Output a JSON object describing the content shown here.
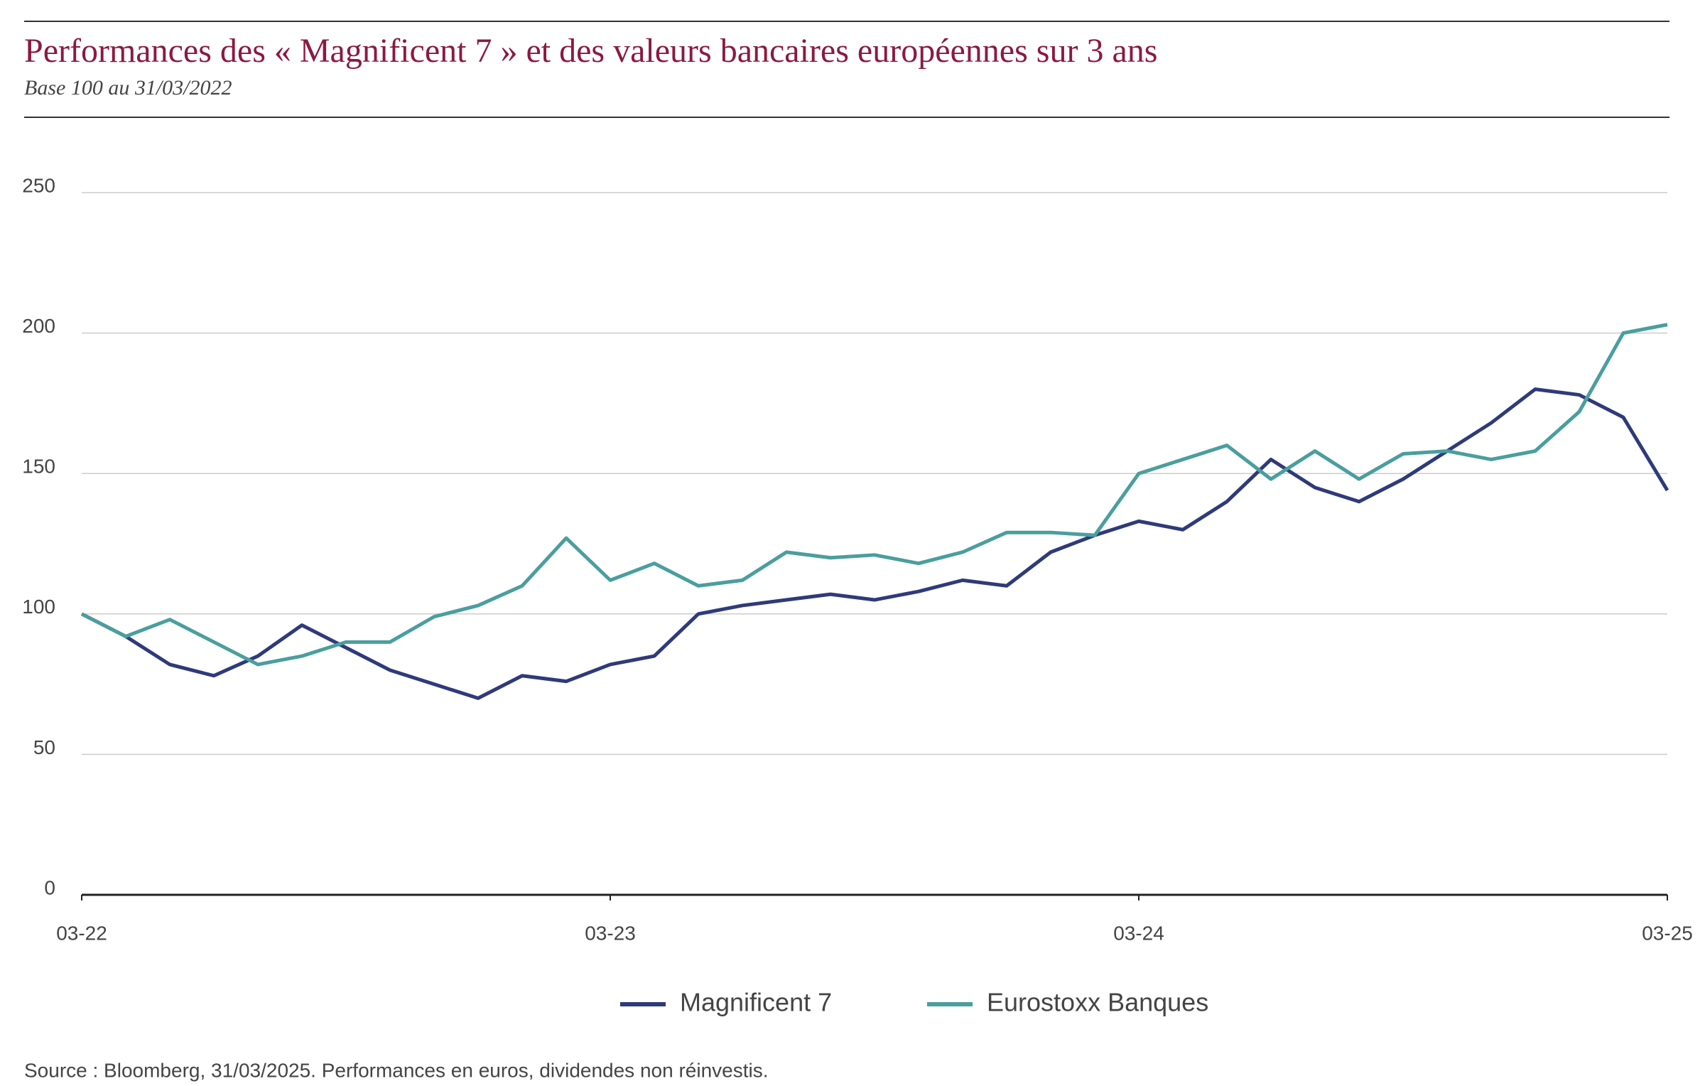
{
  "chart_data": {
    "type": "line",
    "title": "Performances des « Magnificent 7 » et des valeurs bancaires européennes sur 3 ans",
    "subtitle": "Base 100 au 31/03/2022",
    "source": "Source : Bloomberg, 31/03/2025. Performances en euros, dividendes non réinvestis.",
    "x": [
      0,
      1,
      2,
      3,
      4,
      5,
      6,
      7,
      8,
      9,
      10,
      11,
      12,
      13,
      14,
      15,
      16,
      17,
      18,
      19,
      20,
      21,
      22,
      23,
      24,
      25,
      26,
      27,
      28,
      29,
      30,
      31,
      32,
      33,
      34,
      35,
      36
    ],
    "xlim": [
      0,
      36
    ],
    "xticks": [
      {
        "value": 0,
        "label": "03-22"
      },
      {
        "value": 12,
        "label": "03-23"
      },
      {
        "value": 24,
        "label": "03-24"
      },
      {
        "value": 36,
        "label": "03-25"
      }
    ],
    "ylim": [
      0,
      250
    ],
    "yticks": [
      0,
      50,
      100,
      150,
      200,
      250
    ],
    "grid": true,
    "series": [
      {
        "name": "Magnificent 7",
        "color": "#2e3a7a",
        "values": [
          100,
          92,
          82,
          78,
          85,
          96,
          88,
          80,
          75,
          70,
          78,
          76,
          82,
          85,
          100,
          103,
          105,
          107,
          105,
          108,
          112,
          110,
          122,
          128,
          133,
          130,
          140,
          155,
          145,
          140,
          148,
          158,
          168,
          180,
          178,
          170,
          144
        ]
      },
      {
        "name": "Eurostoxx Banques",
        "color": "#4a9e9e",
        "values": [
          100,
          92,
          98,
          90,
          82,
          85,
          90,
          90,
          99,
          103,
          110,
          127,
          112,
          118,
          110,
          112,
          122,
          120,
          121,
          118,
          122,
          129,
          129,
          128,
          150,
          155,
          160,
          148,
          158,
          148,
          157,
          158,
          155,
          158,
          172,
          200,
          203
        ]
      }
    ]
  }
}
